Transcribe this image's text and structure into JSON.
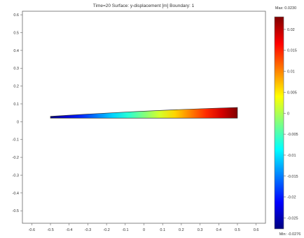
{
  "chart_data": {
    "type": "heatmap",
    "title": "Time=20   Surface: y-displacement [m]   Boundary: 1",
    "xlim": [
      -0.65,
      0.65
    ],
    "ylim": [
      -0.57,
      0.62
    ],
    "x_ticks": [
      "-0.6",
      "-0.5",
      "-0.4",
      "-0.3",
      "-0.2",
      "-0.1",
      "0",
      "0.1",
      "0.2",
      "0.3",
      "0.4",
      "0.5",
      "0.6"
    ],
    "y_ticks": [
      "0.6",
      "0.5",
      "0.4",
      "0.3",
      "0.2",
      "0.1",
      "0",
      "-0.1",
      "-0.2",
      "-0.3",
      "-0.4",
      "-0.5"
    ],
    "beam": {
      "x_range": [
        -0.5,
        0.5
      ],
      "bottom_y": 0.02,
      "top_y_left": 0.03,
      "top_y_right": 0.08,
      "value_left": -0.0276,
      "value_right": 0.023
    },
    "colorbar": {
      "max_label": "Max: 0.0230",
      "min_label": "Min: -0.0276",
      "max": 0.023,
      "min": -0.0276,
      "ticks": [
        "0.02",
        "0.015",
        "0.01",
        "0.005",
        "0",
        "-0.005",
        "-0.01",
        "-0.015",
        "-0.02",
        "-0.025"
      ],
      "colormap": "jet",
      "colors": [
        "#00007f",
        "#0000ff",
        "#007fff",
        "#00ffff",
        "#7fff7f",
        "#ffff00",
        "#ff7f00",
        "#ff0000",
        "#7f0000"
      ]
    }
  }
}
